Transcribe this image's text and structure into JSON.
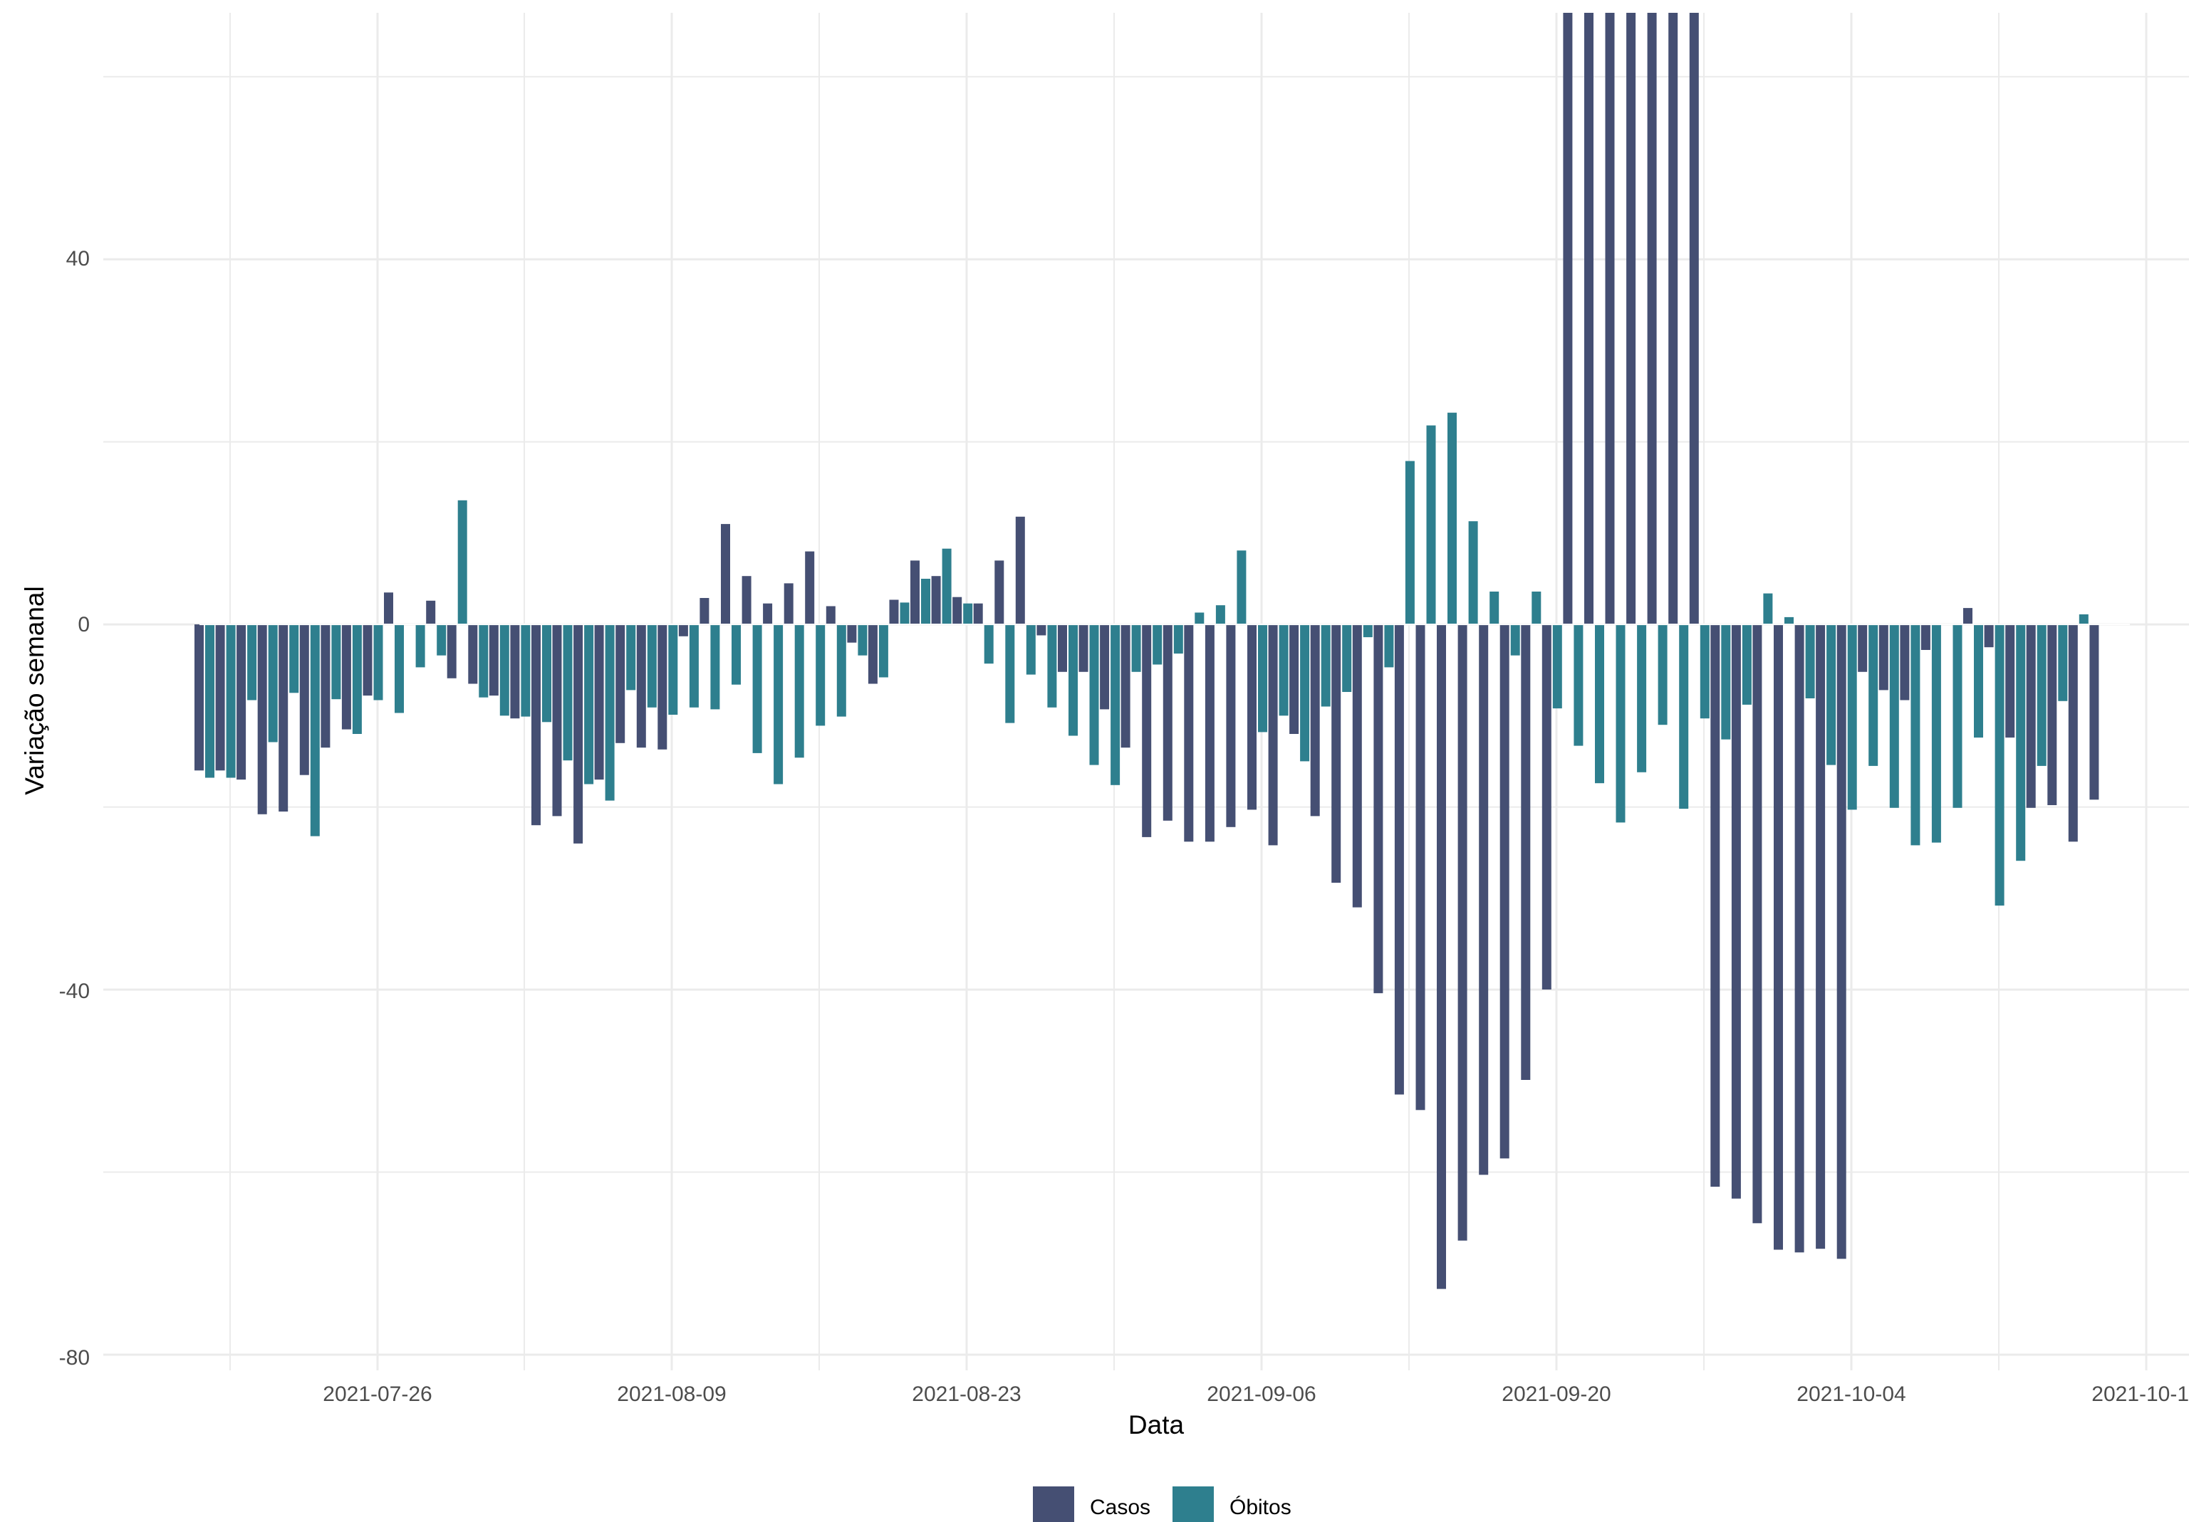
{
  "chart_data": {
    "type": "bar",
    "title": "",
    "xlabel": "Data",
    "ylabel": "Variação semanal",
    "x_tick_labels": [
      "2021-07-26",
      "2021-08-09",
      "2021-08-23",
      "2021-09-06",
      "2021-09-20",
      "2021-10-04",
      "2021-10-18"
    ],
    "y_tick_labels": [
      "40",
      "0",
      "-40",
      "-80"
    ],
    "ylim": [
      -80,
      67
    ],
    "grid": true,
    "legend_position": "bottom",
    "x_start_date": "2021-07-13",
    "dates": [
      "2021-07-13",
      "2021-07-14",
      "2021-07-15",
      "2021-07-16",
      "2021-07-17",
      "2021-07-18",
      "2021-07-19",
      "2021-07-20",
      "2021-07-21",
      "2021-07-22",
      "2021-07-23",
      "2021-07-24",
      "2021-07-25",
      "2021-07-26",
      "2021-07-27",
      "2021-07-28",
      "2021-07-29",
      "2021-07-30",
      "2021-07-31",
      "2021-08-01",
      "2021-08-02",
      "2021-08-03",
      "2021-08-04",
      "2021-08-05",
      "2021-08-06",
      "2021-08-07",
      "2021-08-08",
      "2021-08-09",
      "2021-08-10",
      "2021-08-11",
      "2021-08-12",
      "2021-08-13",
      "2021-08-14",
      "2021-08-15",
      "2021-08-16",
      "2021-08-17",
      "2021-08-18",
      "2021-08-19",
      "2021-08-20",
      "2021-08-21",
      "2021-08-22",
      "2021-08-23",
      "2021-08-24",
      "2021-08-25",
      "2021-08-26",
      "2021-08-27",
      "2021-08-28",
      "2021-08-29",
      "2021-08-30",
      "2021-08-31",
      "2021-09-01",
      "2021-09-02",
      "2021-09-03",
      "2021-09-04",
      "2021-09-05",
      "2021-09-06",
      "2021-09-07",
      "2021-09-08",
      "2021-09-09",
      "2021-09-10",
      "2021-09-11",
      "2021-09-12",
      "2021-09-13",
      "2021-09-14",
      "2021-09-15",
      "2021-09-16",
      "2021-09-17",
      "2021-09-18",
      "2021-09-19",
      "2021-09-20",
      "2021-09-21",
      "2021-09-22",
      "2021-09-23",
      "2021-09-24",
      "2021-09-25",
      "2021-09-26",
      "2021-09-27",
      "2021-09-28",
      "2021-09-29",
      "2021-09-30",
      "2021-10-01",
      "2021-10-02",
      "2021-10-03",
      "2021-10-04",
      "2021-10-05",
      "2021-10-06",
      "2021-10-07",
      "2021-10-08",
      "2021-10-09",
      "2021-10-10",
      "2021-10-11",
      "2021-10-12",
      "2021-10-13",
      "2021-10-14",
      "2021-10-15",
      "2021-10-16"
    ],
    "series": [
      {
        "name": "Casos",
        "color": "#454f73",
        "values": [
          -16,
          -16,
          -17,
          -20.8,
          -20.5,
          -16.5,
          -13.5,
          -11.5,
          -7.8,
          3.5,
          0,
          2.6,
          -5.9,
          -6.5,
          -7.8,
          -10.3,
          -22,
          -21,
          -24,
          -17,
          -13,
          -13.5,
          -13.7,
          -1.3,
          2.9,
          11,
          5.3,
          2.3,
          4.5,
          8,
          2,
          -2,
          -6.5,
          2.7,
          7,
          5.3,
          3,
          2.3,
          7,
          11.8,
          -1.2,
          -5.2,
          -5.2,
          -9.3,
          -13.5,
          -23.3,
          -21.5,
          -23.8,
          -23.8,
          -22.2,
          -20.3,
          -24.2,
          -12,
          -21,
          -28.3,
          -31,
          -40.4,
          -51.5,
          -53.2,
          -72.8,
          -67.5,
          -60.3,
          -58.5,
          -49.9,
          -40,
          67,
          67,
          67,
          67,
          67,
          67,
          67,
          -61.6,
          -62.9,
          -65.6,
          -68.5,
          -68.8,
          -68.4,
          -69.5,
          -5.2,
          -7.2,
          -8.3,
          -2.8,
          0,
          1.8,
          -2.5,
          -12.4,
          -20.1,
          -19.8,
          -23.8,
          -19.2,
          0,
          0,
          0,
          0,
          0
        ]
      },
      {
        "name": "Óbitos",
        "color": "#2e7f8e",
        "values": [
          -16.8,
          -16.8,
          -8.3,
          -12.9,
          -7.5,
          -23.2,
          -8.2,
          -12,
          -8.3,
          -9.7,
          -4.7,
          -3.4,
          13.6,
          -8,
          -10,
          -10.1,
          -10.7,
          -14.9,
          -17.5,
          -19.3,
          -7.2,
          -9.1,
          -9.9,
          -9.1,
          -9.3,
          -6.6,
          -14.1,
          -17.5,
          -14.6,
          -11.1,
          -10.1,
          -3.4,
          -5.8,
          2.4,
          5,
          8.3,
          2.3,
          -4.3,
          -10.8,
          -5.5,
          -9.1,
          -12.2,
          -15.4,
          -17.6,
          -5.2,
          -4.4,
          -3.2,
          1.3,
          2.1,
          8.1,
          -11.8,
          -10,
          -15,
          -9,
          -7.4,
          -1.4,
          -4.7,
          17.9,
          21.8,
          23.2,
          11.3,
          3.6,
          -3.4,
          3.6,
          -9.2,
          -13.3,
          -17.4,
          -21.7,
          -16.2,
          -11,
          -20.2,
          -10.3,
          -12.6,
          -8.8,
          3.4,
          0.8,
          -8.1,
          -15.4,
          -20.3,
          -15.5,
          -20.1,
          -24.2,
          -23.9,
          -20.1,
          -12.4,
          -30.8,
          -25.9,
          -15.5,
          -8.4,
          1.1,
          0,
          0,
          0,
          0,
          0,
          0
        ]
      }
    ]
  }
}
